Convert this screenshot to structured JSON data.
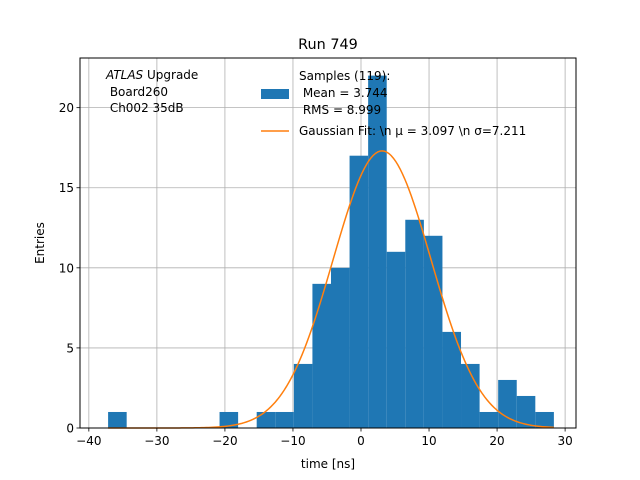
{
  "chart_data": {
    "type": "bar",
    "title": "Run 749",
    "xlabel": "time [ns]",
    "ylabel": "Entries",
    "xlim": [
      -41.3,
      31.6
    ],
    "ylim": [
      0,
      23.1
    ],
    "xticks": [
      -40,
      -30,
      -20,
      -10,
      0,
      10,
      20,
      30
    ],
    "yticks": [
      0,
      5,
      10,
      15,
      20
    ],
    "grid": true,
    "bin_width": 2.73,
    "bins": [
      {
        "x0": -37.17,
        "count": 1
      },
      {
        "x0": -34.44,
        "count": 0
      },
      {
        "x0": -31.71,
        "count": 0
      },
      {
        "x0": -28.98,
        "count": 0
      },
      {
        "x0": -26.25,
        "count": 0
      },
      {
        "x0": -23.52,
        "count": 0
      },
      {
        "x0": -20.79,
        "count": 1
      },
      {
        "x0": -18.06,
        "count": 0
      },
      {
        "x0": -15.33,
        "count": 1
      },
      {
        "x0": -12.6,
        "count": 1
      },
      {
        "x0": -9.87,
        "count": 4
      },
      {
        "x0": -7.14,
        "count": 9
      },
      {
        "x0": -4.41,
        "count": 10
      },
      {
        "x0": -1.68,
        "count": 17
      },
      {
        "x0": 1.05,
        "count": 22
      },
      {
        "x0": 3.78,
        "count": 11
      },
      {
        "x0": 6.51,
        "count": 13
      },
      {
        "x0": 9.24,
        "count": 12
      },
      {
        "x0": 11.97,
        "count": 6
      },
      {
        "x0": 14.7,
        "count": 4
      },
      {
        "x0": 17.43,
        "count": 1
      },
      {
        "x0": 20.16,
        "count": 3
      },
      {
        "x0": 22.89,
        "count": 2
      },
      {
        "x0": 25.62,
        "count": 1
      }
    ],
    "fit": {
      "mu": 3.097,
      "sigma": 7.211,
      "amplitude": 17.3,
      "x_range": [
        -37.17,
        28.35
      ]
    },
    "hist_color": "#1f77b4",
    "fit_color": "#ff7f0e",
    "legend": {
      "placement": "top-center",
      "samples_label": [
        "Samples (119):",
        " Mean = 3.744",
        " RMS = 8.999"
      ],
      "fit_label": "Gaussian Fit: \\n μ = 3.097 \\n σ=7.211"
    },
    "annotation": {
      "atlas": "ATLAS",
      "upgrade": " Upgrade",
      "line2": " Board260",
      "line3": " Ch002 35dB"
    }
  }
}
